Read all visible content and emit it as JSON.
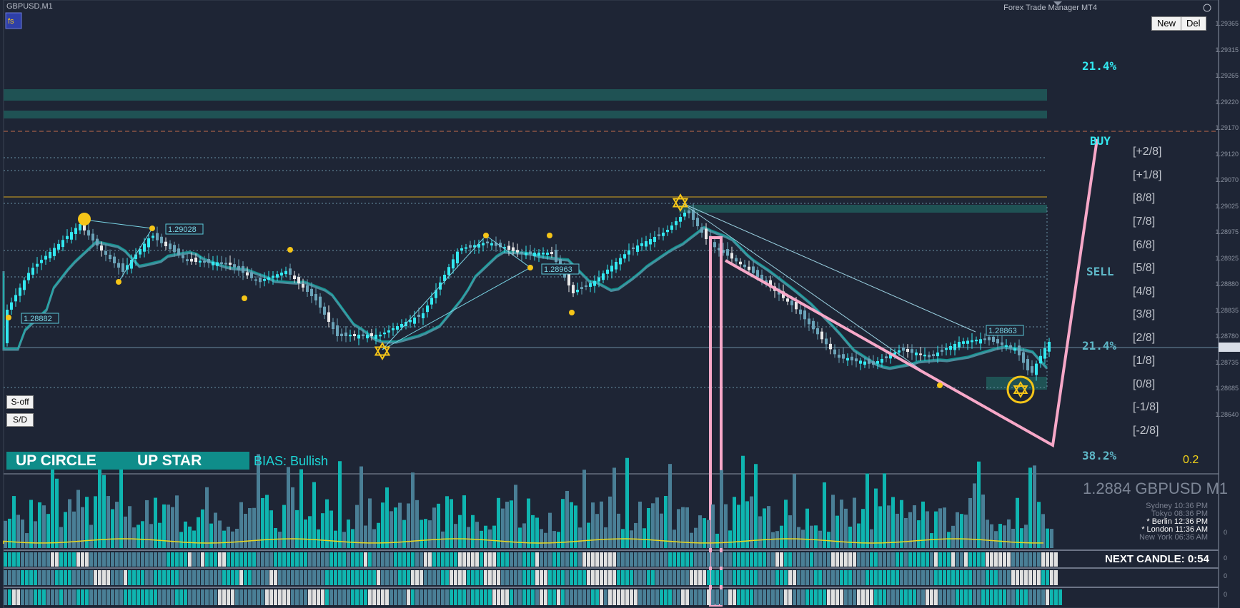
{
  "window": {
    "title": "GBPUSD,M1",
    "manager": "Forex Trade Manager MT4"
  },
  "toolbar": {
    "new_label": "New",
    "del_label": "Del"
  },
  "side_buttons": {
    "soff_label": "S-off",
    "sd_label": "S/D"
  },
  "signals": {
    "circle": "UP CIRCLE",
    "star": "UP STAR",
    "bias": "BIAS: Bullish"
  },
  "chart_labels": {
    "buy": "BUY",
    "sell": "SELL",
    "pct_top": "21.4%",
    "pct_mid": "21.4%",
    "pct_bottom": "38.2%",
    "value_bottom": "0.2",
    "price_tags": [
      "1.28882",
      "1.29028",
      "1.28963",
      "1.28863"
    ]
  },
  "murrey_levels": [
    "[+2/8]",
    "[+1/8]",
    "[8/8]",
    "[7/8]",
    "[6/8]",
    "[5/8]",
    "[4/8]",
    "[3/8]",
    "[2/8]",
    "[1/8]",
    "[0/8]",
    "[-1/8]",
    "[-2/8]"
  ],
  "price_axis": [
    "1.29365",
    "1.29315",
    "1.29265",
    "1.29220",
    "1.29170",
    "1.29120",
    "1.29070",
    "1.29025",
    "1.28975",
    "1.28925",
    "1.28880",
    "1.28835",
    "1.28780",
    "1.28735",
    "1.28685",
    "1.28640"
  ],
  "quote": "1.2884 GBPUSD M1",
  "sessions": [
    {
      "name": "Sydney",
      "time": "10:36 PM",
      "active": false
    },
    {
      "name": "Tokyo",
      "time": "08:36 PM",
      "active": false
    },
    {
      "name": "* Berlin",
      "time": "12:36 PM",
      "active": true
    },
    {
      "name": "* London",
      "time": "11:36 AM",
      "active": true
    },
    {
      "name": "New York",
      "time": "06:36 AM",
      "active": false
    }
  ],
  "next_candle": "NEXT CANDLE: 0:54",
  "sub_axis": [
    "0",
    "0",
    "0",
    "0"
  ],
  "colors": {
    "bg": "#1e2535",
    "bull": "#33e8f0",
    "bear": "#6aa3b8",
    "neutral": "#e8e8e8",
    "teal": "#0fb5b0",
    "pink": "#f7a8c8",
    "gold": "#f5c518"
  }
}
